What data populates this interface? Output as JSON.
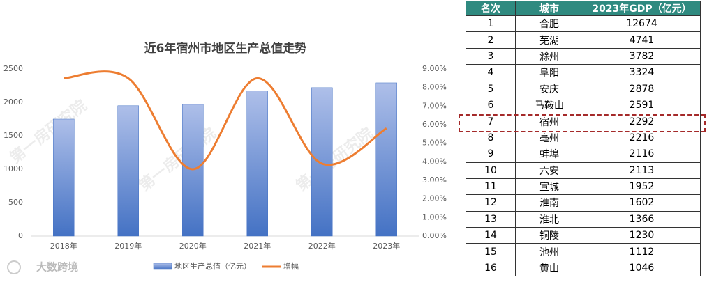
{
  "chart_data": {
    "type": "combo",
    "title": "近6年宿州市地区生产总值走势",
    "categories": [
      "2018年",
      "2019年",
      "2020年",
      "2021年",
      "2022年",
      "2023年"
    ],
    "series": [
      {
        "name": "地区生产总值（亿元）",
        "type": "bar",
        "color": "#4472c4",
        "values": [
          1750,
          1950,
          1970,
          2170,
          2220,
          2292
        ]
      },
      {
        "name": "增幅",
        "type": "line",
        "color": "#ed7d31",
        "axis": "y2",
        "values": [
          8.5,
          8.5,
          3.6,
          8.5,
          3.9,
          5.8
        ]
      }
    ],
    "ylim": [
      0,
      2500
    ],
    "yticks": [
      0,
      500,
      1000,
      1500,
      2000,
      2500
    ],
    "y2lim": [
      0,
      9
    ],
    "y2ticks": [
      {
        "value": 0,
        "label": "0.00%"
      },
      {
        "value": 1,
        "label": "1.00%"
      },
      {
        "value": 2,
        "label": "2.00%"
      },
      {
        "value": 3,
        "label": "3.00%"
      },
      {
        "value": 4,
        "label": "4.00%"
      },
      {
        "value": 5,
        "label": "5.00%"
      },
      {
        "value": 6,
        "label": "6.00%"
      },
      {
        "value": 7,
        "label": "7.00%"
      },
      {
        "value": 8,
        "label": "8.00%"
      },
      {
        "value": 9,
        "label": "9.00%"
      }
    ],
    "legend": "bottom",
    "watermark": "第一房研究院",
    "logo": "大数跨境"
  },
  "table": {
    "header": [
      "名次",
      "城市",
      "2023年GDP（亿元）"
    ],
    "rows": [
      [
        1,
        "合肥",
        12674
      ],
      [
        2,
        "芜湖",
        4741
      ],
      [
        3,
        "滁州",
        3782
      ],
      [
        4,
        "阜阳",
        3324
      ],
      [
        5,
        "安庆",
        2878
      ],
      [
        6,
        "马鞍山",
        2591
      ],
      [
        7,
        "宿州",
        2292
      ],
      [
        8,
        "亳州",
        2216
      ],
      [
        9,
        "蚌埠",
        2116
      ],
      [
        10,
        "六安",
        2113
      ],
      [
        11,
        "宣城",
        1952
      ],
      [
        12,
        "淮南",
        1602
      ],
      [
        13,
        "淮北",
        1366
      ],
      [
        14,
        "铜陵",
        1230
      ],
      [
        15,
        "池州",
        1112
      ],
      [
        16,
        "黄山",
        1046
      ]
    ]
  }
}
